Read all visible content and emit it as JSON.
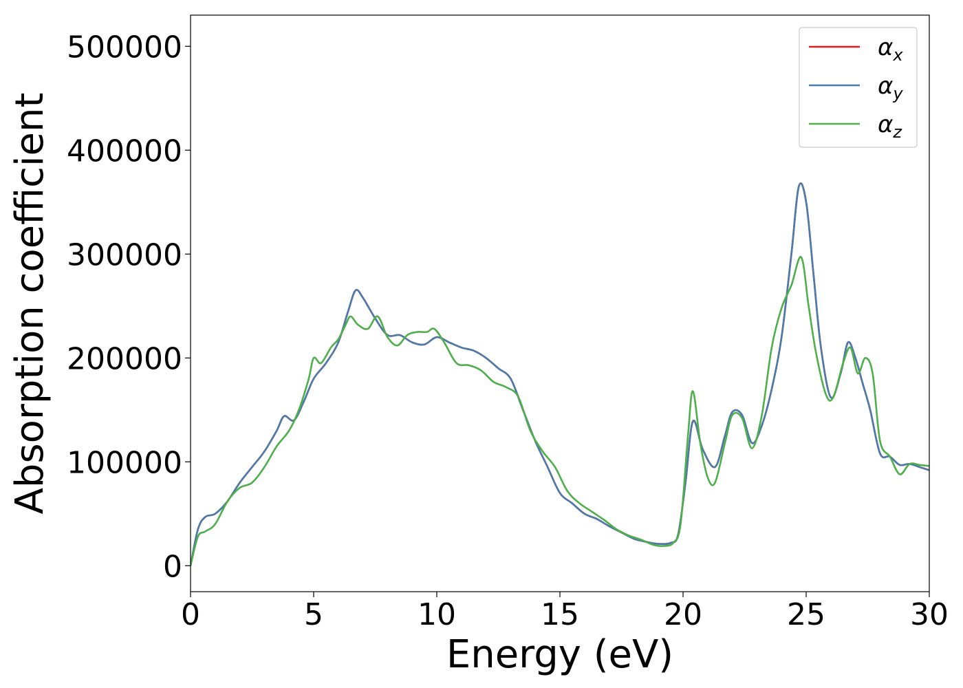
{
  "chart_data": {
    "type": "line",
    "xlabel": "Energy (eV)",
    "ylabel": "Absorption coefficient",
    "xlim": [
      0,
      30
    ],
    "ylim": [
      -25000,
      530000
    ],
    "xticks": [
      0,
      5,
      10,
      15,
      20,
      25,
      30
    ],
    "xtick_labels": [
      "0",
      "5",
      "10",
      "15",
      "20",
      "25",
      "30"
    ],
    "yticks": [
      0,
      100000,
      200000,
      300000,
      400000,
      500000
    ],
    "ytick_labels": [
      "0",
      "100000",
      "200000",
      "300000",
      "400000",
      "500000"
    ],
    "grid": false,
    "legend_position": "top-right",
    "series": [
      {
        "name": "αx",
        "legend_base": "α",
        "legend_sub": "x",
        "color": "#e41a1c",
        "x": [
          0,
          0.3,
          0.6,
          1,
          1.5,
          2,
          2.5,
          3,
          3.5,
          3.8,
          4.2,
          4.6,
          5,
          5.5,
          6,
          6.4,
          6.7,
          7,
          7.5,
          8,
          8.5,
          9,
          9.5,
          10,
          10.5,
          11,
          11.5,
          12,
          12.5,
          13,
          13.5,
          14,
          14.5,
          15,
          15.5,
          16,
          16.5,
          17,
          17.5,
          18,
          18.5,
          19,
          19.5,
          19.8,
          20.1,
          20.4,
          20.8,
          21.3,
          21.7,
          22,
          22.4,
          22.8,
          23.2,
          23.6,
          24,
          24.4,
          24.7,
          25,
          25.3,
          25.6,
          26,
          26.4,
          26.7,
          27,
          27.3,
          27.6,
          28,
          28.4,
          28.8,
          29.2,
          29.6,
          30
        ],
        "values": [
          0,
          35000,
          47000,
          50000,
          62000,
          80000,
          95000,
          110000,
          130000,
          144000,
          140000,
          158000,
          180000,
          195000,
          215000,
          245000,
          265000,
          258000,
          238000,
          222000,
          222000,
          215000,
          213000,
          220000,
          215000,
          210000,
          207000,
          200000,
          190000,
          180000,
          150000,
          120000,
          95000,
          70000,
          60000,
          50000,
          45000,
          38000,
          32000,
          26000,
          23000,
          21000,
          22000,
          30000,
          80000,
          139000,
          112000,
          95000,
          125000,
          148000,
          145000,
          118000,
          135000,
          170000,
          220000,
          300000,
          365000,
          350000,
          280000,
          210000,
          162000,
          185000,
          215000,
          200000,
          175000,
          150000,
          108000,
          105000,
          97000,
          98000,
          95000,
          92000
        ]
      },
      {
        "name": "αy",
        "legend_base": "α",
        "legend_sub": "y",
        "color": "#4a7bad",
        "x": [
          0,
          0.3,
          0.6,
          1,
          1.5,
          2,
          2.5,
          3,
          3.5,
          3.8,
          4.2,
          4.6,
          5,
          5.5,
          6,
          6.4,
          6.7,
          7,
          7.5,
          8,
          8.5,
          9,
          9.5,
          10,
          10.5,
          11,
          11.5,
          12,
          12.5,
          13,
          13.5,
          14,
          14.5,
          15,
          15.5,
          16,
          16.5,
          17,
          17.5,
          18,
          18.5,
          19,
          19.5,
          19.8,
          20.1,
          20.4,
          20.8,
          21.3,
          21.7,
          22,
          22.4,
          22.8,
          23.2,
          23.6,
          24,
          24.4,
          24.7,
          25,
          25.3,
          25.6,
          26,
          26.4,
          26.7,
          27,
          27.3,
          27.6,
          28,
          28.4,
          28.8,
          29.2,
          29.6,
          30
        ],
        "values": [
          0,
          35000,
          47000,
          50000,
          62000,
          80000,
          95000,
          110000,
          130000,
          144000,
          140000,
          158000,
          180000,
          195000,
          215000,
          245000,
          265000,
          258000,
          238000,
          222000,
          222000,
          215000,
          213000,
          220000,
          215000,
          210000,
          207000,
          200000,
          190000,
          180000,
          150000,
          120000,
          95000,
          70000,
          60000,
          50000,
          45000,
          38000,
          32000,
          26000,
          23000,
          21000,
          22000,
          30000,
          80000,
          139000,
          112000,
          95000,
          125000,
          148000,
          145000,
          118000,
          135000,
          170000,
          220000,
          300000,
          365000,
          350000,
          280000,
          210000,
          162000,
          185000,
          215000,
          200000,
          175000,
          150000,
          108000,
          105000,
          97000,
          98000,
          95000,
          92000
        ]
      },
      {
        "name": "αz",
        "legend_base": "α",
        "legend_sub": "z",
        "color": "#4daf4a",
        "x": [
          0,
          0.3,
          0.6,
          1,
          1.5,
          2,
          2.5,
          3,
          3.5,
          4,
          4.4,
          4.8,
          5,
          5.3,
          5.7,
          6,
          6.3,
          6.5,
          6.8,
          7.2,
          7.6,
          8,
          8.4,
          8.8,
          9.2,
          9.6,
          9.9,
          10.3,
          10.8,
          11.3,
          11.8,
          12.3,
          12.8,
          13.3,
          13.8,
          14.3,
          14.8,
          15.3,
          15.8,
          16.3,
          16.8,
          17.3,
          17.8,
          18.3,
          18.8,
          19.2,
          19.6,
          19.9,
          20.2,
          20.4,
          20.7,
          21,
          21.3,
          21.7,
          22,
          22.4,
          22.8,
          23.2,
          23.6,
          24,
          24.4,
          24.8,
          25.1,
          25.4,
          25.8,
          26.1,
          26.5,
          26.8,
          27.1,
          27.4,
          27.7,
          28,
          28.4,
          28.8,
          29.2,
          29.6,
          30
        ],
        "values": [
          0,
          28000,
          33000,
          40000,
          62000,
          75000,
          80000,
          95000,
          115000,
          130000,
          150000,
          180000,
          200000,
          195000,
          210000,
          218000,
          232000,
          240000,
          232000,
          228000,
          240000,
          220000,
          212000,
          222000,
          225000,
          225000,
          228000,
          215000,
          195000,
          193000,
          188000,
          177000,
          172000,
          163000,
          130000,
          110000,
          95000,
          72000,
          60000,
          52000,
          44000,
          35000,
          29000,
          25000,
          20000,
          19000,
          22000,
          40000,
          125000,
          168000,
          118000,
          85000,
          80000,
          118000,
          145000,
          142000,
          113000,
          145000,
          210000,
          248000,
          270000,
          297000,
          250000,
          205000,
          165000,
          162000,
          195000,
          210000,
          185000,
          200000,
          185000,
          120000,
          105000,
          88000,
          98000,
          97000,
          96000
        ]
      }
    ]
  }
}
